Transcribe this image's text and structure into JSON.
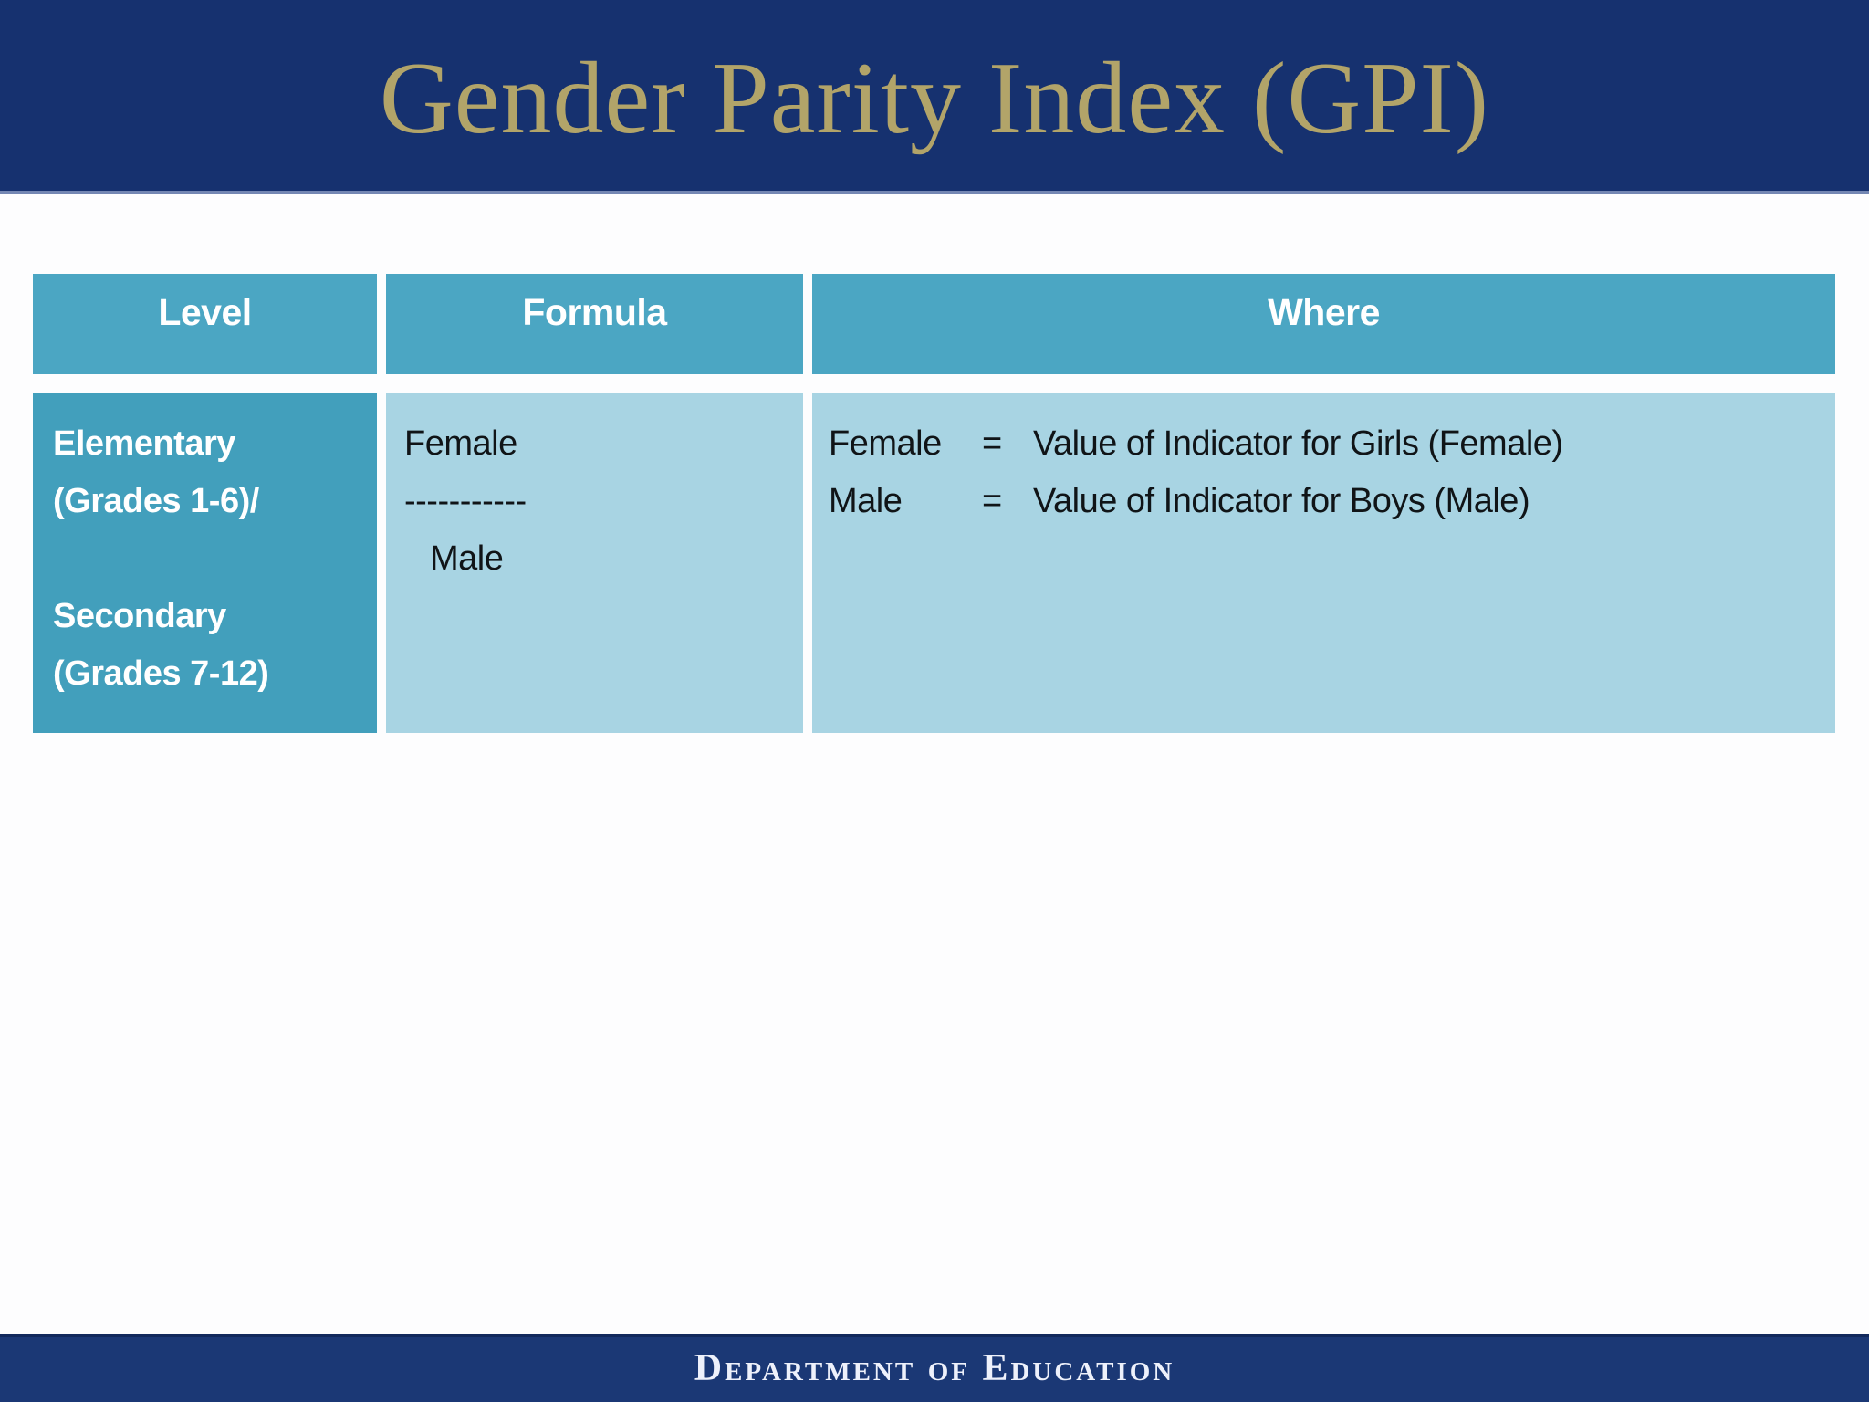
{
  "slide": {
    "title": "Gender Parity Index (GPI)",
    "footer": "Department of Education"
  },
  "table": {
    "headers": [
      "Level",
      "Formula",
      "Where"
    ],
    "row": {
      "level": {
        "group1": [
          "Elementary",
          "(Grades 1-6)/"
        ],
        "group2": [
          "Secondary",
          "(Grades 7-12)"
        ]
      },
      "formula": {
        "numerator": "Female",
        "divider": "-----------",
        "denominator": "Male"
      },
      "where_rows": [
        {
          "term": "Female",
          "eq": "=",
          "definition": "Value of Indicator for Girls (Female)"
        },
        {
          "term": "Male",
          "eq": "=",
          "definition": "Value of Indicator for Boys (Male)"
        }
      ]
    }
  },
  "colors": {
    "navy": "#16316F",
    "navy_footer": "#1B3875",
    "gold": "#B2A469",
    "header_cell": "#4BA6C3",
    "level_cell": "#429FBC",
    "light_cell": "#A8D4E3"
  }
}
